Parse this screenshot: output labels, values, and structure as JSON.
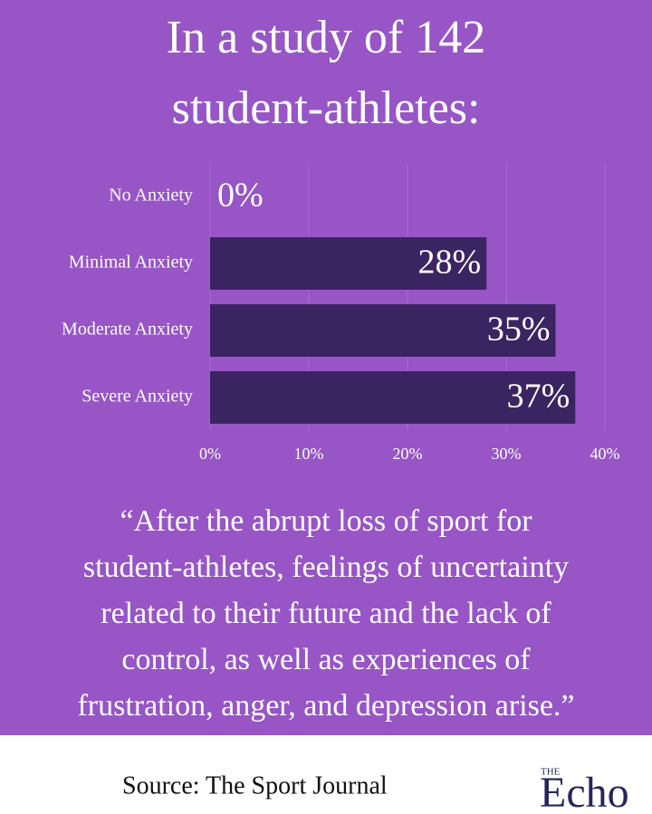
{
  "chart_data": {
    "type": "hbar",
    "title_lines": [
      "In a study of 142",
      "student-athletes:"
    ],
    "categories": [
      "No Anxiety",
      "Minimal Anxiety",
      "Moderate Anxiety",
      "Severe Anxiety"
    ],
    "values": [
      0,
      28,
      35,
      37
    ],
    "value_labels": [
      "0%",
      "28%",
      "35%",
      "37%"
    ],
    "color": "#3b2462",
    "xlim": [
      0,
      40
    ],
    "xticks": [
      {
        "value": 0,
        "label": "0%"
      },
      {
        "value": 10,
        "label": "10%"
      },
      {
        "value": 20,
        "label": "20%"
      },
      {
        "value": 30,
        "label": "30%"
      },
      {
        "value": 40,
        "label": "40%"
      }
    ],
    "grid": true,
    "annotations": [
      "“After the abrupt loss of sport for",
      "student-athletes, feelings of uncertainty",
      "related to their future and the lack of",
      "control, as well as experiences of",
      "frustration, anger, and depression arise.”"
    ],
    "source": "Source: The Sport Journal",
    "logo_small": "THE",
    "logo_large": "Echo"
  }
}
